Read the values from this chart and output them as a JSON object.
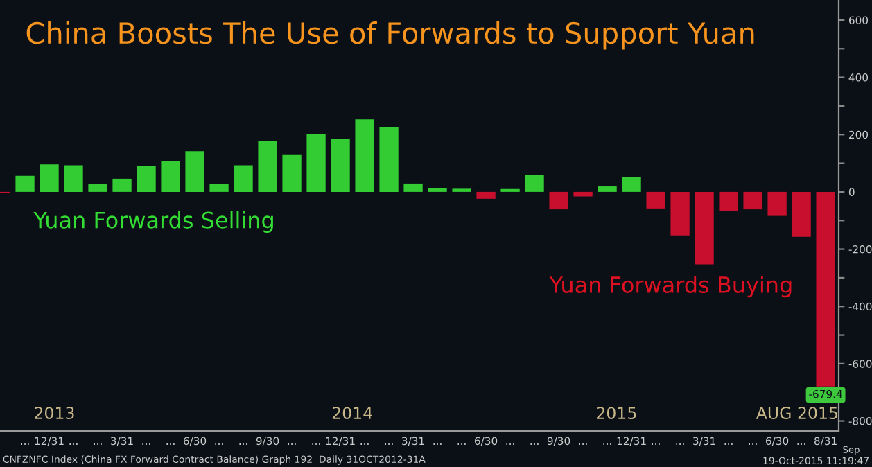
{
  "chart_data": {
    "type": "bar",
    "title": "China Boosts The Use of Forwards to Support Yuan",
    "categories": [
      null,
      "...",
      "12/31",
      "...",
      "...",
      "3/31",
      "...",
      "...",
      "6/30",
      "...",
      "...",
      "9/30",
      "...",
      "...",
      "12/31",
      "...",
      "...",
      "3/31",
      "...",
      "...",
      "6/30",
      "...",
      "...",
      "9/30",
      "...",
      "...",
      "12/31",
      "...",
      "...",
      "3/31",
      "...",
      "...",
      "6/30",
      "...",
      "8/31"
    ],
    "values": [
      -3,
      56,
      96,
      93,
      27,
      46,
      91,
      106,
      142,
      27,
      93,
      179,
      131,
      203,
      184,
      253,
      227,
      29,
      12,
      11,
      -24,
      10,
      59,
      -61,
      -16,
      19,
      53,
      -58,
      -152,
      -253,
      -66,
      -61,
      -84,
      -157,
      -679.4
    ],
    "colors": [
      "#c8102e",
      "#33cc33",
      "#33cc33",
      "#33cc33",
      "#33cc33",
      "#33cc33",
      "#33cc33",
      "#33cc33",
      "#33cc33",
      "#33cc33",
      "#33cc33",
      "#33cc33",
      "#33cc33",
      "#33cc33",
      "#33cc33",
      "#33cc33",
      "#33cc33",
      "#33cc33",
      "#33cc33",
      "#33cc33",
      "#c8102e",
      "#33cc33",
      "#33cc33",
      "#c8102e",
      "#c8102e",
      "#33cc33",
      "#33cc33",
      "#c8102e",
      "#c8102e",
      "#c8102e",
      "#c8102e",
      "#c8102e",
      "#c8102e",
      "#c8102e",
      "#c8102e"
    ],
    "value_labels": [
      null,
      null,
      null,
      null,
      null,
      null,
      null,
      null,
      null,
      null,
      null,
      null,
      null,
      null,
      null,
      null,
      null,
      null,
      null,
      null,
      null,
      null,
      null,
      null,
      null,
      null,
      null,
      null,
      null,
      null,
      null,
      null,
      null,
      null,
      "-679.4"
    ],
    "ylim": [
      -835,
      670
    ],
    "yticks": [
      600,
      {
        "value": 500,
        "label": null
      },
      400,
      {
        "value": 300,
        "label": null
      },
      200,
      {
        "value": 100,
        "label": null
      },
      0,
      {
        "value": -100,
        "label": null
      },
      -200,
      {
        "value": -300,
        "label": null
      },
      -400,
      {
        "value": -500,
        "label": null
      },
      -600,
      {
        "value": -700,
        "label": null
      },
      -800
    ],
    "grid": false,
    "legend": false,
    "annotations": [
      "Yuan Forwards Selling",
      "Yuan Forwards Buying",
      "2013",
      "2014",
      "2015",
      "AUG 2015",
      "Sep",
      "CNFZNFC Index (China FX Forward Contract Balance) Graph 192  Daily 31OCT2012-31A",
      "19-Oct-2015 11:19:47"
    ]
  }
}
